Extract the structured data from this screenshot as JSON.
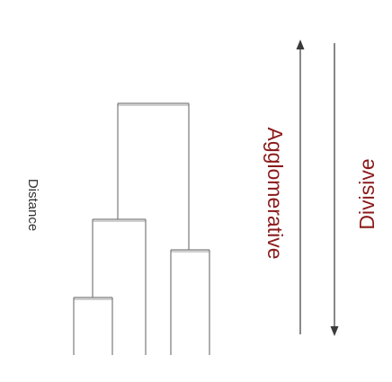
{
  "diagram": {
    "axis_label": "Distance",
    "agglomerative": {
      "label": "Agglomerative",
      "arrow_direction": "up",
      "color": "#8b1a1a"
    },
    "divisive": {
      "label": "Divisive",
      "arrow_direction": "down",
      "color": "#8b1a1a"
    }
  }
}
